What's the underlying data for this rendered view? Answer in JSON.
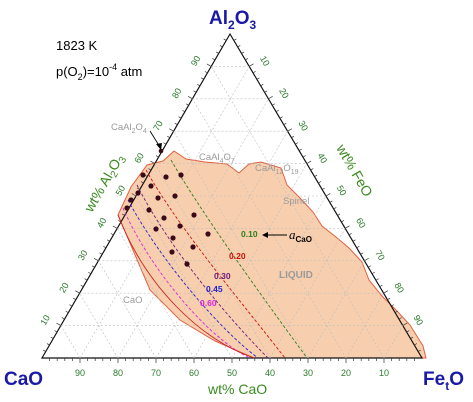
{
  "vertices": {
    "top": "Al2O3",
    "left": "CaO",
    "right": "FetO"
  },
  "conditions": {
    "temperature": "1823 K",
    "pressure_prefix": "p(O",
    "pressure_sub": "2",
    "pressure_suffix": ")=10",
    "pressure_exp": "-4",
    "pressure_unit": " atm"
  },
  "axes": {
    "left_title": "wt% Al2O3",
    "right_title": "wt% FeO",
    "bottom_title": "wt% CaO",
    "left_ticks": [
      "10",
      "20",
      "30",
      "40",
      "50",
      "60",
      "70",
      "80",
      "90"
    ],
    "right_ticks": [
      "10",
      "20",
      "30",
      "40",
      "50",
      "60",
      "70",
      "80",
      "90"
    ],
    "bottom_ticks": [
      "90",
      "80",
      "70",
      "60",
      "50",
      "40",
      "30",
      "20",
      "10"
    ]
  },
  "phases": {
    "caal2o4": "CaAl2O4",
    "caal4o7": "CaAl4O7",
    "caal12o19": "CaAl12O19",
    "spinel": "Spinel",
    "liquid": "LIQUID",
    "cao": "CaO"
  },
  "isoactivity": [
    {
      "label": "0.10",
      "color": "#2e7d1e"
    },
    {
      "label": "0.20",
      "color": "#cc1111"
    },
    {
      "label": "0.30",
      "color": "#6a1b7a"
    },
    {
      "label": "0.45",
      "color": "#2222cc"
    },
    {
      "label": "0.60",
      "color": "#dd22dd"
    }
  ],
  "activity": {
    "symbol": "a",
    "sub": "CaO"
  },
  "colors": {
    "liquid_fill": "#f8cfae",
    "liquid_edge": "#e06040",
    "vertex_label": "#1a1aa6",
    "axis_text": "#3a8a1f",
    "phase_text": "#9a9a9a"
  }
}
